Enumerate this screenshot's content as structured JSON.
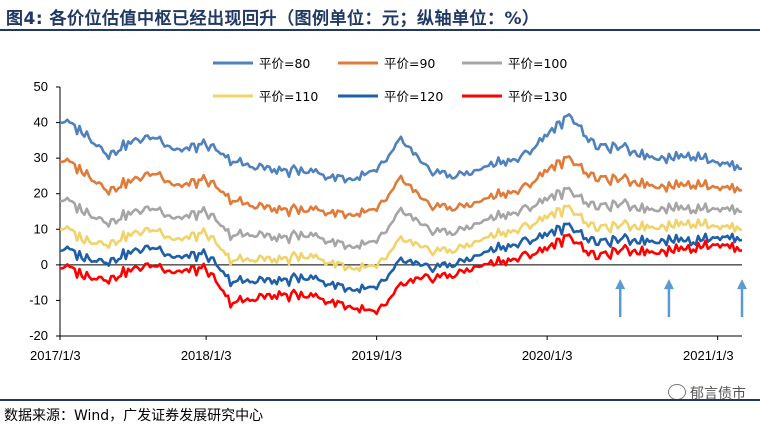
{
  "title": "图4: 各价位估值中枢已经出现回升（图例单位：元；纵轴单位：%）",
  "source": "数据来源：Wind，广发证券发展研究中心",
  "watermark": "郁言债市",
  "chart_data": {
    "type": "line",
    "title": "",
    "xlabel": "",
    "ylabel": "",
    "ylim": [
      -20,
      50
    ],
    "yticks": [
      -20,
      -10,
      0,
      10,
      20,
      30,
      40,
      50
    ],
    "xticks": [
      "2017/1/3",
      "2018/1/3",
      "2019/1/3",
      "2020/1/3",
      "2021/1/3"
    ],
    "x": [
      "2017/1/3",
      "2017/3",
      "2017/5",
      "2017/7",
      "2017/9",
      "2017/11",
      "2018/1/3",
      "2018/2",
      "2018/4",
      "2018/6",
      "2018/8",
      "2018/10",
      "2018/12",
      "2019/1/3",
      "2019/2",
      "2019/4",
      "2019/6",
      "2019/8",
      "2019/10",
      "2019/12",
      "2020/1/3",
      "2020/3",
      "2020/5",
      "2020/7",
      "2020/9",
      "2020/11",
      "2020/12",
      "2021/1/3",
      "2021/2"
    ],
    "series": [
      {
        "name": "平价=80",
        "color": "#4f81bd",
        "values": [
          41,
          37,
          31,
          35,
          36,
          32,
          34,
          29,
          28,
          26,
          27,
          25,
          24,
          26,
          35,
          27,
          25,
          26,
          29,
          30,
          37,
          42,
          33,
          33,
          31,
          30,
          31,
          29,
          27
        ]
      },
      {
        "name": "平价=90",
        "color": "#e07b39",
        "values": [
          30,
          26,
          21,
          24,
          26,
          22,
          24,
          18,
          17,
          15,
          16,
          15,
          14,
          15,
          24,
          17,
          16,
          17,
          20,
          21,
          27,
          30,
          24,
          24,
          23,
          22,
          23,
          22,
          21
        ]
      },
      {
        "name": "平价=100",
        "color": "#a5a5a5",
        "values": [
          19,
          15,
          12,
          15,
          16,
          13,
          15,
          8,
          9,
          7,
          9,
          7,
          5,
          6,
          15,
          10,
          9,
          11,
          14,
          15,
          19,
          21,
          16,
          17,
          16,
          16,
          16,
          16,
          15
        ]
      },
      {
        "name": "平价=110",
        "color": "#f0d36b",
        "values": [
          11,
          7,
          6,
          9,
          10,
          7,
          9,
          1,
          2,
          1,
          3,
          1,
          -1,
          -1,
          7,
          4,
          4,
          6,
          9,
          10,
          14,
          16,
          10,
          11,
          11,
          11,
          12,
          11,
          10
        ]
      },
      {
        "name": "平价=120",
        "color": "#1f5fa8",
        "values": [
          5,
          2,
          1,
          4,
          5,
          2,
          3,
          -5,
          -4,
          -5,
          -3,
          -5,
          -7,
          -7,
          1,
          -1,
          0,
          2,
          5,
          6,
          9,
          11,
          6,
          7,
          7,
          7,
          7,
          8,
          7
        ]
      },
      {
        "name": "平价=130",
        "color": "#ff0000",
        "values": [
          0,
          -3,
          -4,
          -1,
          0,
          -2,
          -1,
          -11,
          -9,
          -9,
          -8,
          -10,
          -12,
          -14,
          -6,
          -4,
          -3,
          -1,
          1,
          2,
          5,
          8,
          2,
          4,
          4,
          4,
          5,
          6,
          4
        ]
      }
    ],
    "annotations": [
      {
        "type": "arrow-up",
        "x": "2020/7",
        "y_tip": -4
      },
      {
        "type": "arrow-up",
        "x": "2020/11",
        "y_tip": -4
      },
      {
        "type": "arrow-up",
        "x": "2021/2",
        "y_tip": -4
      }
    ],
    "legend": {
      "placement": "top-center",
      "columns": 3
    },
    "grid": false
  }
}
